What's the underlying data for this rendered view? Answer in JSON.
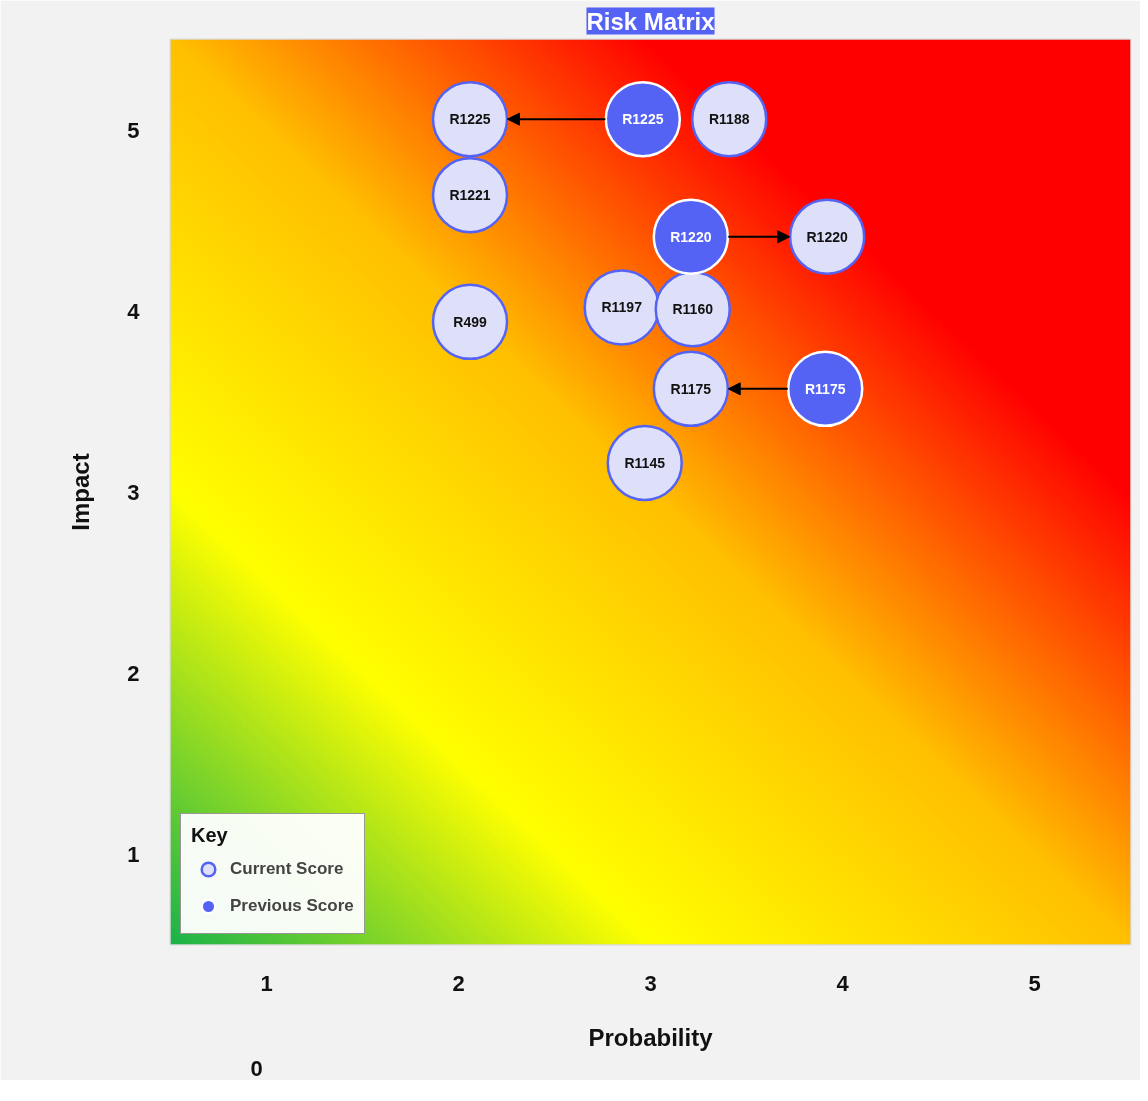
{
  "chart_data": {
    "type": "scatter",
    "title": "Risk Matrix",
    "xlabel": "Probability",
    "ylabel": "Impact",
    "legend_title": "Key",
    "xlim": [
      0.5,
      5.5
    ],
    "ylim": [
      0.5,
      5.5
    ],
    "xticks": [
      1,
      2,
      3,
      4,
      5
    ],
    "yticks": [
      1,
      2,
      3,
      4,
      5
    ],
    "grid": false,
    "legend": "bottom left",
    "marker": "circle",
    "series": [
      {
        "name": "Current Score",
        "color": "#dde0f8",
        "x": [
          2.06,
          3.92,
          3.21,
          2.06,
          3.41,
          2.06,
          2.85,
          3.22,
          2.97
        ],
        "values": [
          5.06,
          4.41,
          3.57,
          4.64,
          5.06,
          3.94,
          4.02,
          4.01,
          3.16
        ]
      },
      {
        "name": "Previous Score",
        "color": "#5563f5",
        "x": [
          2.96,
          3.21,
          3.91
        ],
        "values": [
          5.06,
          4.41,
          3.57
        ]
      }
    ],
    "annotations": [
      {
        "text": "R1225",
        "x": 2.06,
        "y": 5.06
      },
      {
        "text": "R1220",
        "x": 3.92,
        "y": 4.41
      },
      {
        "text": "R1175",
        "x": 3.21,
        "y": 3.57
      },
      {
        "text": "R1221",
        "x": 2.06,
        "y": 4.64
      },
      {
        "text": "R1188",
        "x": 3.41,
        "y": 5.06
      },
      {
        "text": "R499",
        "x": 2.06,
        "y": 3.94
      },
      {
        "text": "R1197",
        "x": 2.85,
        "y": 4.02
      },
      {
        "text": "R1160",
        "x": 3.22,
        "y": 4.01
      },
      {
        "text": "R1145",
        "x": 2.97,
        "y": 3.16
      },
      {
        "text": "R1225",
        "x": 2.96,
        "y": 5.06
      },
      {
        "text": "R1220",
        "x": 3.21,
        "y": 4.41
      },
      {
        "text": "R1175",
        "x": 3.91,
        "y": 3.57
      },
      "0"
    ]
  }
}
